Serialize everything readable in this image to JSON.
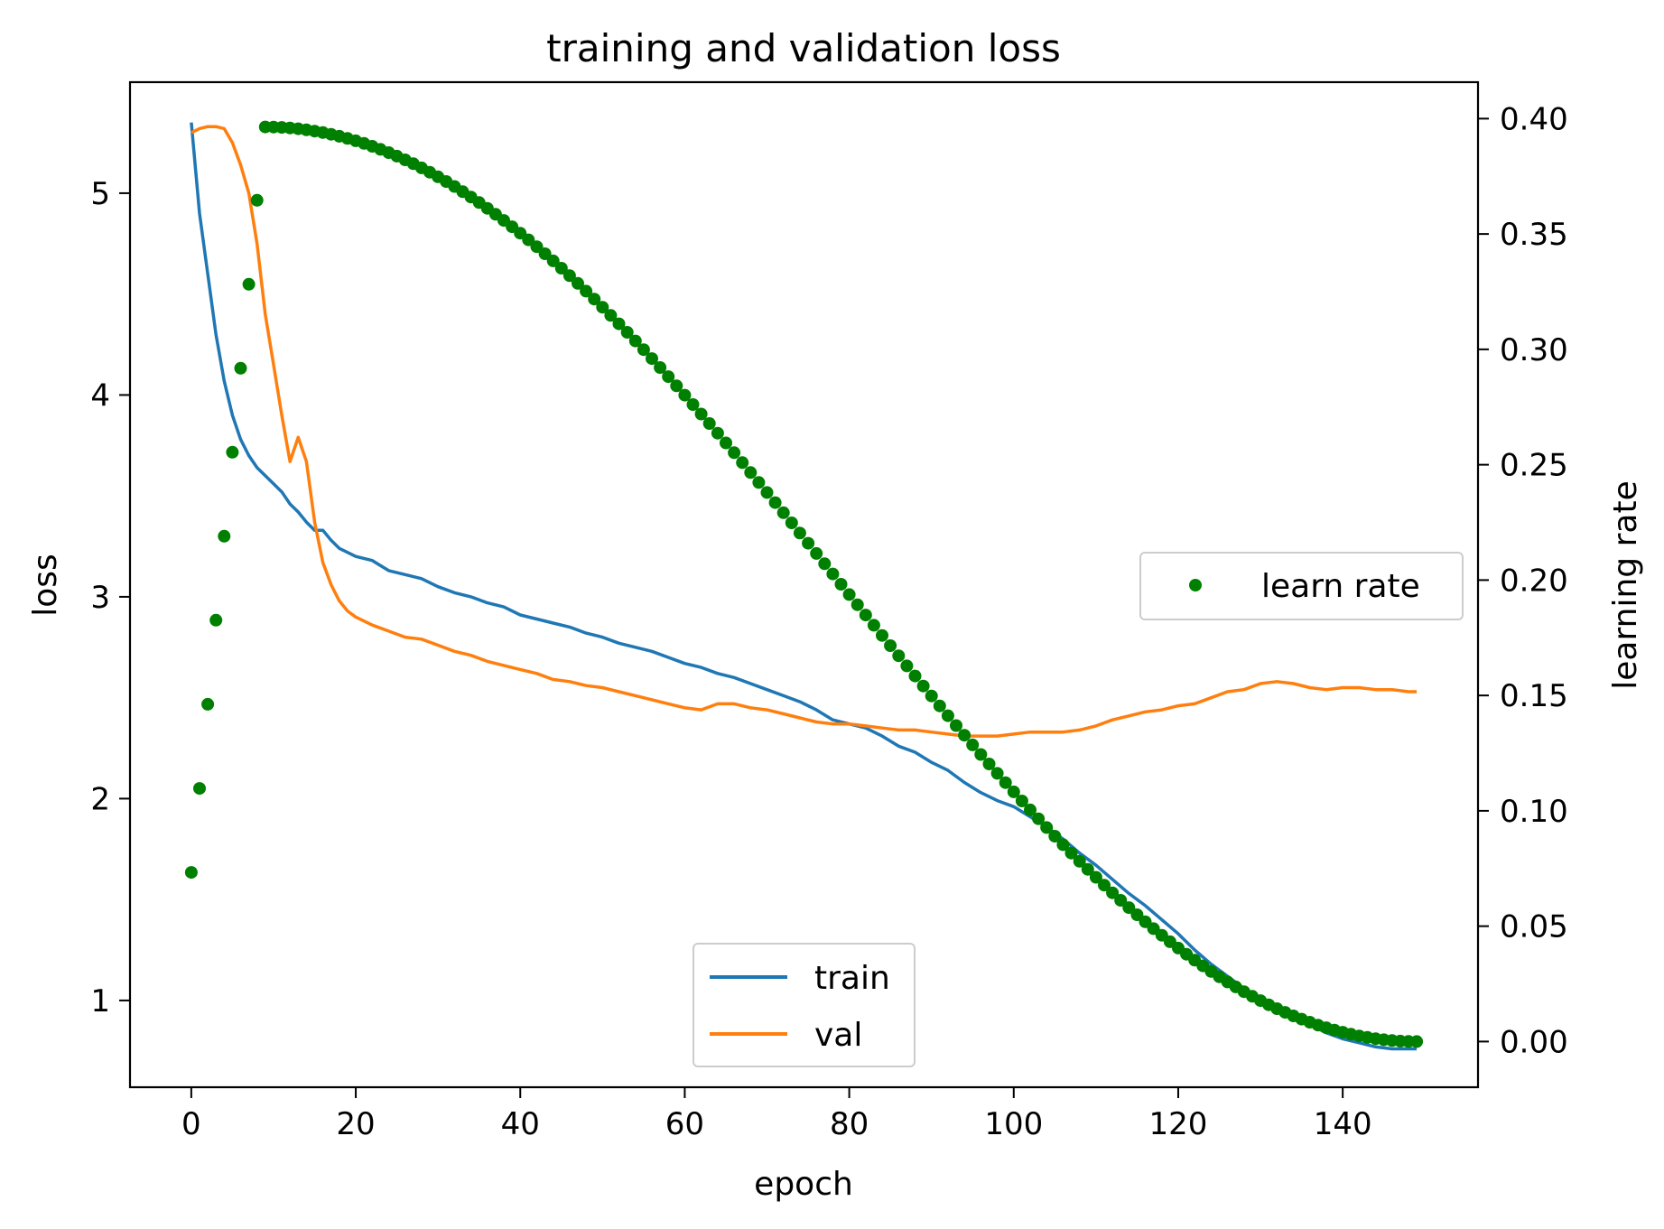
{
  "chart_data": {
    "type": "line",
    "title": "training and validation loss",
    "xlabel": "epoch",
    "ylabel": "loss",
    "y2label": "learning rate",
    "xlim": [
      -7.45,
      156.45
    ],
    "ylim": [
      0.57,
      5.55
    ],
    "y2lim": [
      -0.0198,
      0.4158
    ],
    "xticks": [
      "0",
      "20",
      "40",
      "60",
      "80",
      "100",
      "120",
      "140"
    ],
    "yticks": [
      "1",
      "2",
      "3",
      "4",
      "5"
    ],
    "y2ticks": [
      "0.00",
      "0.05",
      "0.10",
      "0.15",
      "0.20",
      "0.25",
      "0.30",
      "0.35",
      "0.40"
    ],
    "grid": false,
    "series": [
      {
        "name": "train",
        "axis": "left",
        "style": "line",
        "color": "#1f77b4",
        "points": [
          [
            0,
            5.35
          ],
          [
            1,
            4.9
          ],
          [
            2,
            4.6
          ],
          [
            3,
            4.3
          ],
          [
            4,
            4.07
          ],
          [
            5,
            3.9
          ],
          [
            6,
            3.78
          ],
          [
            7,
            3.7
          ],
          [
            8,
            3.64
          ],
          [
            9,
            3.6
          ],
          [
            10,
            3.56
          ],
          [
            11,
            3.52
          ],
          [
            12,
            3.46
          ],
          [
            13,
            3.42
          ],
          [
            14,
            3.37
          ],
          [
            15,
            3.33
          ],
          [
            16,
            3.33
          ],
          [
            17,
            3.28
          ],
          [
            18,
            3.24
          ],
          [
            20,
            3.2
          ],
          [
            22,
            3.18
          ],
          [
            24,
            3.13
          ],
          [
            26,
            3.11
          ],
          [
            28,
            3.09
          ],
          [
            30,
            3.05
          ],
          [
            32,
            3.02
          ],
          [
            34,
            3.0
          ],
          [
            36,
            2.97
          ],
          [
            38,
            2.95
          ],
          [
            40,
            2.91
          ],
          [
            42,
            2.89
          ],
          [
            44,
            2.87
          ],
          [
            46,
            2.85
          ],
          [
            48,
            2.82
          ],
          [
            50,
            2.8
          ],
          [
            52,
            2.77
          ],
          [
            54,
            2.75
          ],
          [
            56,
            2.73
          ],
          [
            58,
            2.7
          ],
          [
            60,
            2.67
          ],
          [
            62,
            2.65
          ],
          [
            64,
            2.62
          ],
          [
            66,
            2.6
          ],
          [
            68,
            2.57
          ],
          [
            70,
            2.54
          ],
          [
            72,
            2.51
          ],
          [
            74,
            2.48
          ],
          [
            76,
            2.44
          ],
          [
            78,
            2.39
          ],
          [
            80,
            2.37
          ],
          [
            82,
            2.35
          ],
          [
            84,
            2.31
          ],
          [
            86,
            2.26
          ],
          [
            88,
            2.23
          ],
          [
            90,
            2.18
          ],
          [
            92,
            2.14
          ],
          [
            94,
            2.08
          ],
          [
            96,
            2.03
          ],
          [
            98,
            1.99
          ],
          [
            100,
            1.96
          ],
          [
            102,
            1.91
          ],
          [
            104,
            1.86
          ],
          [
            106,
            1.8
          ],
          [
            108,
            1.73
          ],
          [
            110,
            1.67
          ],
          [
            112,
            1.6
          ],
          [
            114,
            1.53
          ],
          [
            116,
            1.47
          ],
          [
            118,
            1.4
          ],
          [
            120,
            1.33
          ],
          [
            122,
            1.25
          ],
          [
            124,
            1.18
          ],
          [
            126,
            1.12
          ],
          [
            128,
            1.06
          ],
          [
            130,
            1.0
          ],
          [
            132,
            0.96
          ],
          [
            134,
            0.92
          ],
          [
            136,
            0.88
          ],
          [
            138,
            0.84
          ],
          [
            140,
            0.81
          ],
          [
            142,
            0.79
          ],
          [
            144,
            0.77
          ],
          [
            146,
            0.76
          ],
          [
            148,
            0.76
          ],
          [
            149,
            0.76
          ]
        ]
      },
      {
        "name": "val",
        "axis": "left",
        "style": "line",
        "color": "#ff7f0e",
        "points": [
          [
            0,
            5.3
          ],
          [
            1,
            5.32
          ],
          [
            2,
            5.33
          ],
          [
            3,
            5.33
          ],
          [
            4,
            5.32
          ],
          [
            5,
            5.25
          ],
          [
            6,
            5.14
          ],
          [
            7,
            5.0
          ],
          [
            8,
            4.75
          ],
          [
            9,
            4.4
          ],
          [
            10,
            4.15
          ],
          [
            11,
            3.9
          ],
          [
            12,
            3.67
          ],
          [
            13,
            3.79
          ],
          [
            14,
            3.67
          ],
          [
            15,
            3.37
          ],
          [
            16,
            3.17
          ],
          [
            17,
            3.06
          ],
          [
            18,
            2.98
          ],
          [
            19,
            2.93
          ],
          [
            20,
            2.9
          ],
          [
            22,
            2.86
          ],
          [
            24,
            2.83
          ],
          [
            26,
            2.8
          ],
          [
            28,
            2.79
          ],
          [
            30,
            2.76
          ],
          [
            32,
            2.73
          ],
          [
            34,
            2.71
          ],
          [
            36,
            2.68
          ],
          [
            38,
            2.66
          ],
          [
            40,
            2.64
          ],
          [
            42,
            2.62
          ],
          [
            44,
            2.59
          ],
          [
            46,
            2.58
          ],
          [
            48,
            2.56
          ],
          [
            50,
            2.55
          ],
          [
            52,
            2.53
          ],
          [
            54,
            2.51
          ],
          [
            56,
            2.49
          ],
          [
            58,
            2.47
          ],
          [
            60,
            2.45
          ],
          [
            62,
            2.44
          ],
          [
            64,
            2.47
          ],
          [
            66,
            2.47
          ],
          [
            68,
            2.45
          ],
          [
            70,
            2.44
          ],
          [
            72,
            2.42
          ],
          [
            74,
            2.4
          ],
          [
            76,
            2.38
          ],
          [
            78,
            2.37
          ],
          [
            80,
            2.37
          ],
          [
            82,
            2.36
          ],
          [
            84,
            2.35
          ],
          [
            86,
            2.34
          ],
          [
            88,
            2.34
          ],
          [
            90,
            2.33
          ],
          [
            92,
            2.32
          ],
          [
            94,
            2.31
          ],
          [
            96,
            2.31
          ],
          [
            98,
            2.31
          ],
          [
            100,
            2.32
          ],
          [
            102,
            2.33
          ],
          [
            104,
            2.33
          ],
          [
            106,
            2.33
          ],
          [
            108,
            2.34
          ],
          [
            110,
            2.36
          ],
          [
            112,
            2.39
          ],
          [
            114,
            2.41
          ],
          [
            116,
            2.43
          ],
          [
            118,
            2.44
          ],
          [
            120,
            2.46
          ],
          [
            122,
            2.47
          ],
          [
            124,
            2.5
          ],
          [
            126,
            2.53
          ],
          [
            128,
            2.54
          ],
          [
            130,
            2.57
          ],
          [
            132,
            2.58
          ],
          [
            134,
            2.57
          ],
          [
            136,
            2.55
          ],
          [
            138,
            2.54
          ],
          [
            140,
            2.55
          ],
          [
            142,
            2.55
          ],
          [
            144,
            2.54
          ],
          [
            146,
            2.54
          ],
          [
            148,
            2.53
          ],
          [
            149,
            2.53
          ]
        ]
      },
      {
        "name": "learn rate",
        "axis": "right",
        "style": "points",
        "color": "#008000",
        "warmup_points": [
          [
            0,
            0.0733
          ],
          [
            1,
            0.1097
          ],
          [
            2,
            0.1462
          ],
          [
            3,
            0.1826
          ],
          [
            4,
            0.219
          ],
          [
            5,
            0.2554
          ],
          [
            6,
            0.2918
          ],
          [
            7,
            0.3282
          ],
          [
            8,
            0.3646
          ]
        ],
        "cosine_decay": {
          "start_epoch": 9,
          "end_epoch": 149,
          "start_value": 0.3964,
          "end_value": 0.0,
          "step": 1
        }
      }
    ],
    "legends": [
      {
        "placement": "lower center",
        "entries": [
          "train",
          "val"
        ]
      },
      {
        "placement": "center right",
        "entries": [
          "learn rate"
        ]
      }
    ]
  }
}
